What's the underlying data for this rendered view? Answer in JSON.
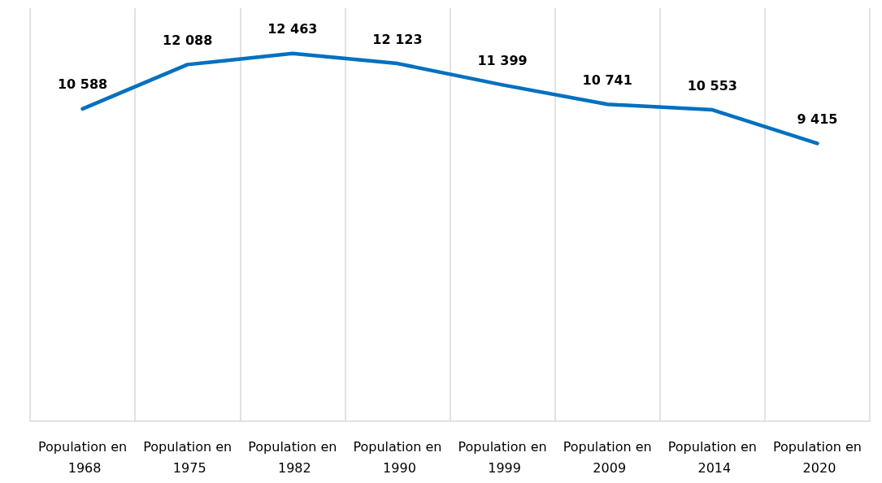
{
  "chart_data": {
    "type": "line",
    "categories": [
      "Population en 1968",
      "Population en 1975",
      "Population en 1982",
      "Population en 1990",
      "Population en 1999",
      "Population en 2009",
      "Population en 2014",
      "Population en 2020"
    ],
    "series": [
      {
        "color": "#0070c0",
        "values": [
          10588,
          12088,
          12463,
          12123,
          11399,
          10741,
          10553,
          9415
        ],
        "value_labels": [
          "10 588",
          "12 088",
          "12 463",
          "12 123",
          "11 399",
          "10 741",
          "10 553",
          "9 415"
        ]
      }
    ],
    "grid": "x",
    "marker": "none",
    "line_style": "solid"
  }
}
